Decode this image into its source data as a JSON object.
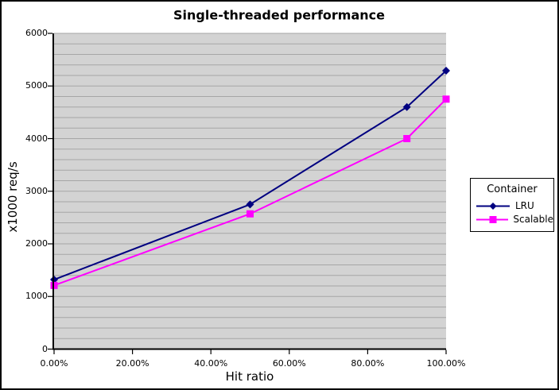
{
  "window": {
    "background": "#ffffff",
    "border_color": "#000000"
  },
  "chart_data": {
    "type": "line",
    "title": "Single-threaded performance",
    "xlabel": "Hit ratio",
    "ylabel": "x1000 req/s",
    "x": [
      0,
      50,
      90,
      100
    ],
    "series": [
      {
        "name": "LRU",
        "color": "#000080",
        "marker": "diamond",
        "values": [
          1320,
          2750,
          4600,
          5290
        ]
      },
      {
        "name": "Scalable",
        "color": "#ff00ff",
        "marker": "square",
        "values": [
          1210,
          2570,
          4000,
          4750
        ]
      }
    ],
    "xlim": [
      0,
      100
    ],
    "ylim": [
      0,
      6000
    ],
    "x_tick_values": [
      0,
      20,
      40,
      60,
      80,
      100
    ],
    "x_tick_labels": [
      "0.00%",
      "20.00%",
      "40.00%",
      "60.00%",
      "80.00%",
      "100.00%"
    ],
    "y_tick_values": [
      0,
      1000,
      2000,
      3000,
      4000,
      5000,
      6000
    ],
    "y_tick_labels": [
      "0",
      "1000",
      "2000",
      "3000",
      "4000",
      "5000",
      "6000"
    ],
    "y_minor_step": 200,
    "grid": "horizontal-minor-only",
    "plot_bg": "#d3d3d3",
    "grid_color": "#a6a6a6",
    "axis_color": "#000000",
    "legend": {
      "title": "Container",
      "position": "right",
      "entries": [
        "LRU",
        "Scalable"
      ]
    }
  }
}
